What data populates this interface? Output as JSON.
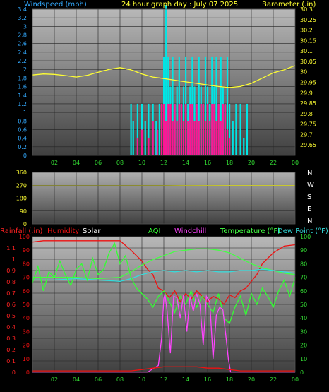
{
  "colors": {
    "wind": "#00e5e5",
    "gust": "#ff1493",
    "barometer": "#ffff33",
    "tick_left_top": "#33aaff",
    "tick_right_top": "#ffff33",
    "tick_green": "#33dd33",
    "rain": "#ff2222",
    "humidity": "#ee1111",
    "aqi": "#33ff33",
    "windchill": "#ff44ff",
    "temperature": "#44ff44",
    "dewpoint": "#33dddd",
    "compass": "#ffffff"
  },
  "header": {
    "windspeed_label": "Windspeed (mph)",
    "title": "24 hour graph day : July 07 2025",
    "barometer_label": "Barometer (.in)"
  },
  "direction_panel": {
    "compass_letters": [
      "N",
      "W",
      "S",
      "E",
      "N"
    ]
  },
  "bottom_header": {
    "rainfall": "Rainfall (.in)",
    "humidity": "Humidity",
    "solar": "Solar",
    "aqi": "AQI",
    "windchill": "Windchill",
    "temperature": "Temperature (°F)",
    "dewpoint": "Dew Point (°F)"
  },
  "chart_data": [
    {
      "type": "line",
      "title": "24 hour graph day : July 07 2025",
      "xlabel": "",
      "x_ticks": [
        "02",
        "04",
        "06",
        "08",
        "10",
        "12",
        "14",
        "16",
        "18",
        "20",
        "22",
        "00"
      ],
      "x_range_hours": [
        0,
        24
      ],
      "left_axis": {
        "label": "Windspeed (mph)",
        "ylim": [
          0,
          3.4
        ],
        "ticks": [
          "0",
          "0.2",
          "0.4",
          "0.6",
          "0.8",
          "1",
          "1.2",
          "1.4",
          "1.6",
          "1.8",
          "2",
          "2.2",
          "2.4",
          "2.6",
          "2.8",
          "3",
          "3.2",
          "3.4"
        ]
      },
      "right_axis": {
        "label": "Barometer (.in)",
        "ylim": [
          29.6,
          30.3
        ],
        "ticks": [
          "29.65",
          "29.7",
          "29.75",
          "29.8",
          "29.85",
          "29.9",
          "29.95",
          "30",
          "30.05",
          "30.1",
          "30.15",
          "30.2",
          "30.25",
          "30.3"
        ]
      },
      "grid": true,
      "series": [
        {
          "kind": "bars",
          "color_key": "wind",
          "hours": [
            9.0,
            9.2,
            9.6,
            10.0,
            10.3,
            10.6,
            11.0,
            11.3,
            11.6,
            12.0,
            12.2,
            12.4,
            12.6,
            12.8,
            13.0,
            13.2,
            13.4,
            13.6,
            13.8,
            14.0,
            14.2,
            14.4,
            14.6,
            14.8,
            15.0,
            15.2,
            15.4,
            15.6,
            15.8,
            16.0,
            16.2,
            16.4,
            16.6,
            16.8,
            17.0,
            17.2,
            17.4,
            17.6,
            17.8,
            18.0,
            18.3,
            18.6,
            19.0,
            19.3,
            19.6
          ],
          "values": [
            1.2,
            0.8,
            1.2,
            1.2,
            0.8,
            1.2,
            1.2,
            0.8,
            1.2,
            2.3,
            3.5,
            2.3,
            1.6,
            2.3,
            1.2,
            1.6,
            2.3,
            1.2,
            1.6,
            2.3,
            1.2,
            1.6,
            2.3,
            1.6,
            1.2,
            2.3,
            1.6,
            1.2,
            2.3,
            1.6,
            1.2,
            2.3,
            1.6,
            2.3,
            1.2,
            2.3,
            1.6,
            1.2,
            2.3,
            1.2,
            0.8,
            1.2,
            1.2,
            0.4,
            1.2
          ]
        },
        {
          "kind": "bars",
          "color_key": "gust",
          "hours": [
            9.6,
            10.0,
            10.6,
            11.0,
            11.4,
            11.8,
            12.0,
            12.2,
            12.4,
            12.6,
            12.8,
            13.0,
            13.2,
            13.4,
            13.6,
            13.8,
            14.0,
            14.2,
            14.4,
            14.6,
            14.8,
            15.0,
            15.2,
            15.4,
            15.6,
            15.8,
            16.0,
            16.2,
            16.4,
            16.6,
            16.8,
            17.0,
            17.2,
            17.4,
            17.6,
            17.8,
            18.0
          ],
          "values": [
            0.4,
            0.6,
            0.4,
            0.8,
            0.6,
            1.2,
            1.2,
            0.8,
            1.2,
            1.2,
            0.8,
            1.2,
            0.8,
            1.2,
            1.2,
            0.8,
            1.2,
            0.8,
            1.2,
            1.2,
            0.8,
            1.2,
            0.8,
            1.2,
            1.2,
            0.8,
            1.2,
            0.8,
            1.2,
            1.2,
            0.8,
            1.2,
            0.8,
            1.2,
            1.2,
            0.6,
            0.4
          ]
        },
        {
          "kind": "line",
          "axis": "right",
          "color_key": "barometer",
          "hours": [
            0,
            1,
            2,
            3,
            4,
            5,
            6,
            7,
            8,
            9,
            10,
            11,
            12,
            13,
            14,
            15,
            16,
            17,
            18,
            19,
            20,
            21,
            22,
            23,
            24
          ],
          "values": [
            29.985,
            29.99,
            29.988,
            29.982,
            29.975,
            29.983,
            29.998,
            30.012,
            30.02,
            30.01,
            29.99,
            29.975,
            29.968,
            29.96,
            29.952,
            29.945,
            29.937,
            29.93,
            29.925,
            29.93,
            29.945,
            29.97,
            29.995,
            30.01,
            30.03
          ]
        }
      ]
    },
    {
      "type": "line",
      "title": "",
      "x_range_hours": [
        0,
        24
      ],
      "left_axis": {
        "label": "",
        "ylim": [
          0,
          360
        ],
        "ticks": [
          "0",
          "90",
          "180",
          "270",
          "360"
        ]
      },
      "grid": true,
      "series": [
        {
          "kind": "line",
          "color_key": "barometer",
          "hours": [
            0,
            6,
            12,
            18,
            24
          ],
          "values": [
            265,
            265,
            266,
            267,
            267
          ]
        }
      ]
    },
    {
      "type": "line",
      "title": "",
      "x_ticks": [
        "02",
        "04",
        "06",
        "08",
        "10",
        "12",
        "14",
        "16",
        "18",
        "20",
        "22",
        "00"
      ],
      "x_range_hours": [
        0,
        24
      ],
      "left_axis": {
        "label": "Rainfall (.in)",
        "ylim": [
          0,
          1.2
        ],
        "ticks": [
          "0",
          "0.1",
          "0.2",
          "0.3",
          "0.4",
          "0.5",
          "0.6",
          "0.7",
          "0.8",
          "0.9",
          "1",
          "1.1"
        ]
      },
      "left_axis_2": {
        "label": "Humidity",
        "ylim": [
          0,
          100
        ],
        "ticks": [
          "0",
          "10",
          "20",
          "30",
          "40",
          "50",
          "60",
          "70",
          "80",
          "90",
          "100"
        ]
      },
      "right_axis": {
        "label": "Temperature (°F)",
        "ylim": [
          0,
          100
        ],
        "ticks": [
          "0",
          "10",
          "20",
          "30",
          "40",
          "50",
          "60",
          "70",
          "80",
          "90",
          "100"
        ]
      },
      "grid": true,
      "series": [
        {
          "name": "Humidity",
          "kind": "line",
          "color_key": "humidity",
          "hours": [
            0,
            1,
            3,
            5,
            7,
            8,
            9,
            10,
            10.5,
            11,
            11.5,
            12,
            12.5,
            13,
            13.5,
            14,
            14.5,
            15,
            15.5,
            16,
            16.5,
            17,
            17.5,
            18,
            18.5,
            19,
            19.5,
            20,
            20.5,
            21,
            22,
            23,
            24
          ],
          "values": [
            96,
            97,
            97,
            97,
            97,
            97,
            90,
            82,
            76,
            72,
            62,
            60,
            55,
            60,
            52,
            58,
            54,
            60,
            56,
            52,
            56,
            54,
            50,
            57,
            55,
            60,
            62,
            67,
            72,
            80,
            88,
            93,
            94
          ]
        },
        {
          "name": "Temperature",
          "kind": "line",
          "color_key": "temperature",
          "hours": [
            0,
            2,
            4,
            6,
            8,
            9,
            10,
            11,
            12,
            13,
            14,
            15,
            16,
            17,
            18,
            19,
            20,
            21,
            22,
            23,
            24
          ],
          "values": [
            70,
            70,
            70,
            69,
            70,
            74,
            79,
            83,
            86,
            89,
            90,
            91,
            91,
            90,
            88,
            84,
            80,
            77,
            75,
            73,
            72
          ]
        },
        {
          "name": "Dew Point",
          "kind": "line",
          "color_key": "dewpoint",
          "hours": [
            0,
            2,
            4,
            6,
            8,
            9,
            10,
            11,
            12,
            13,
            14,
            15,
            16,
            17,
            18,
            19,
            20,
            21,
            22,
            23,
            24
          ],
          "values": [
            68,
            68,
            69,
            68,
            67,
            69,
            72,
            74,
            75,
            74,
            75,
            74,
            75,
            74,
            74,
            75,
            75,
            76,
            75,
            74,
            73
          ]
        },
        {
          "name": "AQI",
          "kind": "line",
          "color_key": "aqi",
          "hours": [
            0,
            0.5,
            1,
            1.5,
            2,
            2.5,
            3,
            3.5,
            4,
            4.5,
            5,
            5.5,
            6,
            6.5,
            7,
            7.5,
            8,
            8.5,
            9,
            9.5,
            10,
            10.5,
            11,
            11.5,
            12,
            12.5,
            13,
            13.5,
            14,
            14.5,
            15,
            15.5,
            16,
            16.5,
            17,
            17.5,
            18,
            18.5,
            19,
            19.5,
            20,
            20.5,
            21,
            21.5,
            22,
            22.5,
            23,
            23.5,
            24
          ],
          "values": [
            66,
            78,
            60,
            74,
            70,
            82,
            72,
            64,
            76,
            80,
            68,
            84,
            72,
            76,
            88,
            95,
            80,
            86,
            70,
            62,
            58,
            54,
            48,
            56,
            60,
            52,
            44,
            56,
            50,
            60,
            48,
            56,
            50,
            44,
            58,
            40,
            36,
            48,
            56,
            42,
            58,
            50,
            62,
            56,
            48,
            60,
            68,
            56,
            70
          ]
        },
        {
          "name": "Windchill",
          "kind": "line",
          "color_key": "windchill",
          "hours": [
            0,
            9.5,
            10.5,
            11.5,
            11.8,
            12.0,
            12.1,
            12.3,
            12.6,
            12.9,
            13.2,
            13.5,
            13.8,
            14.1,
            14.4,
            14.7,
            15.0,
            15.3,
            15.6,
            15.9,
            16.2,
            16.5,
            16.8,
            17.1,
            17.4,
            17.7,
            17.9,
            18.1,
            24
          ],
          "values": [
            0,
            0,
            0,
            5,
            25,
            54,
            58,
            45,
            14,
            56,
            55,
            40,
            57,
            30,
            56,
            45,
            58,
            50,
            20,
            56,
            52,
            10,
            42,
            48,
            46,
            25,
            10,
            0,
            0
          ]
        },
        {
          "name": "Solar",
          "kind": "line",
          "color_key": "humidity",
          "hours": [
            0,
            8,
            9,
            10,
            11,
            12,
            13,
            14,
            15,
            16,
            17,
            18,
            19,
            20,
            24
          ],
          "values": [
            1,
            1,
            1,
            2,
            3,
            4,
            4,
            4,
            4,
            3,
            3,
            2,
            1,
            1,
            1
          ]
        }
      ]
    }
  ]
}
